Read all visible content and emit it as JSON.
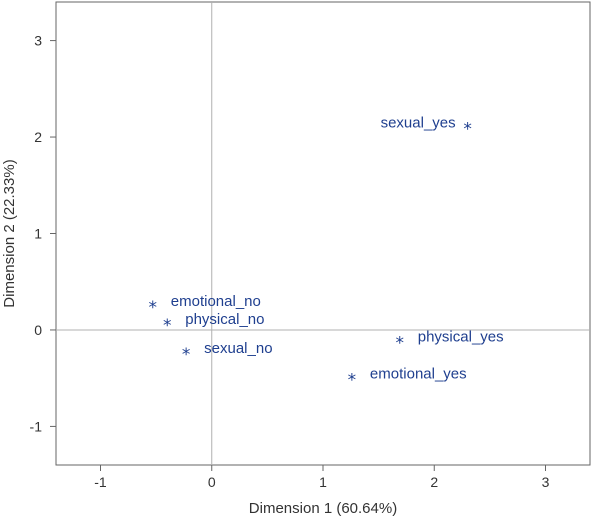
{
  "chart_data": {
    "type": "scatter",
    "xlabel": "Dimension 1 (60.64%)",
    "ylabel": "Dimension 2 (22.33%)",
    "xlim": [
      -1.4,
      3.4
    ],
    "ylim": [
      -1.4,
      3.4
    ],
    "xticks": [
      -1,
      0,
      1,
      2,
      3
    ],
    "yticks": [
      -1,
      0,
      1,
      2,
      3
    ],
    "grid": false,
    "reference_lines": {
      "x": 0,
      "y": 0
    },
    "marker": "*",
    "colors": {
      "points": "#1f3f8f",
      "frame": "#666666",
      "reference": "#b0b0b0"
    },
    "points": [
      {
        "label": "sexual_yes",
        "x": 2.3,
        "y": 2.12,
        "label_side": "left"
      },
      {
        "label": "emotional_no",
        "x": -0.53,
        "y": 0.27,
        "label_side": "right"
      },
      {
        "label": "physical_no",
        "x": -0.4,
        "y": 0.08,
        "label_side": "right"
      },
      {
        "label": "sexual_no",
        "x": -0.23,
        "y": -0.22,
        "label_side": "right"
      },
      {
        "label": "physical_yes",
        "x": 1.69,
        "y": -0.1,
        "label_side": "right"
      },
      {
        "label": "emotional_yes",
        "x": 1.26,
        "y": -0.48,
        "label_side": "right"
      }
    ]
  }
}
